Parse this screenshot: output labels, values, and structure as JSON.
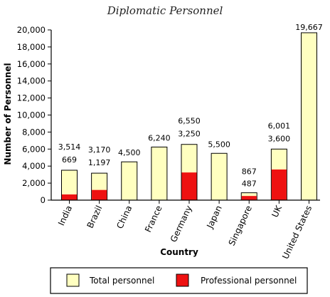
{
  "chart_data": {
    "type": "bar",
    "title": "Diplomatic Personnel",
    "xlabel": "Country",
    "ylabel": "Number of Personnel",
    "ylim": [
      0,
      20000
    ],
    "yticks": [
      0,
      2000,
      4000,
      6000,
      8000,
      10000,
      12000,
      14000,
      16000,
      18000,
      20000
    ],
    "ytick_labels": [
      "0",
      "2,000",
      "4,000",
      "6,000",
      "8,000",
      "10,000",
      "12,000",
      "14,000",
      "16,000",
      "18,000",
      "20,000"
    ],
    "grid": false,
    "legend_position": "bottom",
    "categories": [
      "India",
      "Brazil",
      "China",
      "France",
      "Germany",
      "Japan",
      "Singapore",
      "UK",
      "United States"
    ],
    "series": [
      {
        "name": "Total personnel",
        "color": "#ffffc0",
        "values": [
          3514,
          3170,
          4500,
          6240,
          6550,
          5500,
          867,
          6001,
          19667
        ],
        "labels": [
          "3,514",
          "3,170",
          "4,500",
          "6,240",
          "6,550",
          "5,500",
          "867",
          "6,001",
          "19,667"
        ]
      },
      {
        "name": "Professional personnel",
        "color": "#ee1111",
        "values": [
          669,
          1197,
          null,
          null,
          3250,
          null,
          487,
          3600,
          null
        ],
        "labels": [
          "669",
          "1,197",
          null,
          null,
          "3,250",
          null,
          "487",
          "3,600",
          null
        ]
      }
    ]
  }
}
